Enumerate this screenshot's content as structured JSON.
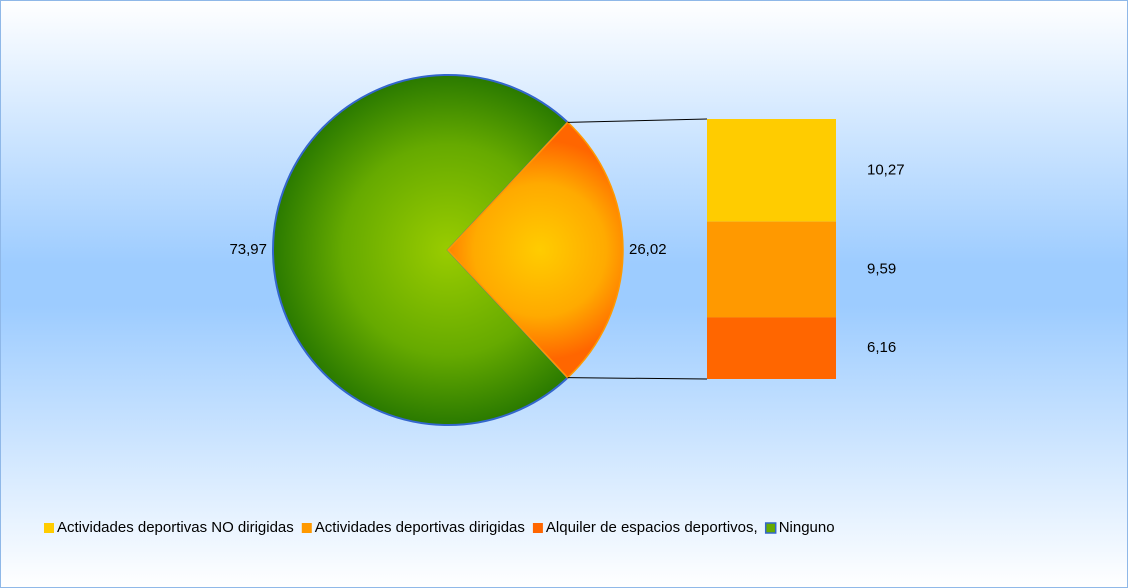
{
  "chart_data": {
    "type": "bar_of_pie",
    "series": [
      {
        "name": "Actividades deportivas NO dirigidas",
        "color": "#ffcc00",
        "value": 10.27,
        "value_label": "10,27"
      },
      {
        "name": "Actividades deportivas dirigidas",
        "color": "#ff9900",
        "value": 9.59,
        "value_label": "9,59"
      },
      {
        "name": "Alquiler de espacios deportivos,",
        "color": "#ff6600",
        "value": 6.16,
        "value_label": "6,16"
      },
      {
        "name": "Ninguno",
        "color": "#66aa00",
        "value": 73.97,
        "value_label": "73,97"
      }
    ],
    "other": {
      "value": 26.02,
      "value_label": "26,02",
      "color": "#ff9900"
    }
  }
}
